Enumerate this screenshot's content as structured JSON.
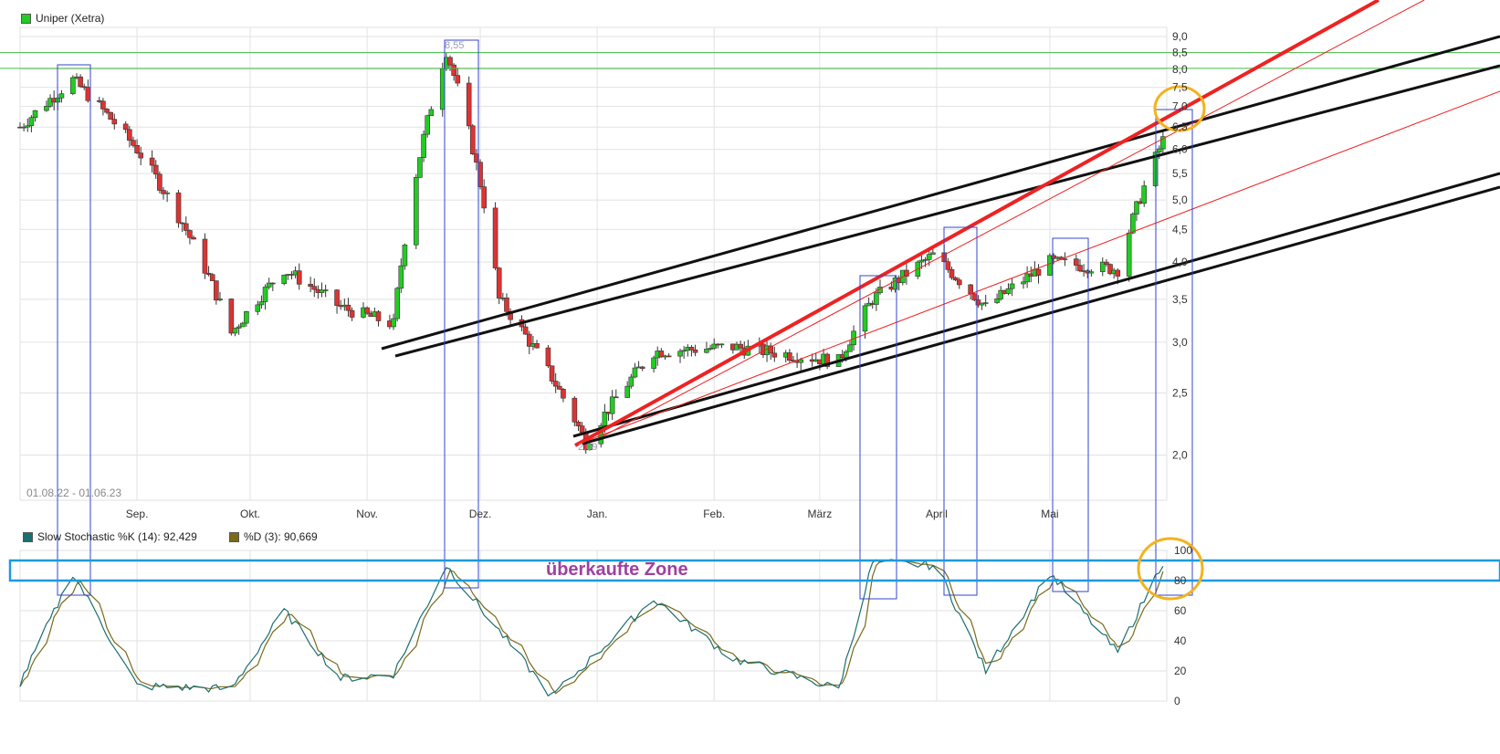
{
  "legend": {
    "price_series": "Uniper (Xetra)",
    "price_color": "#22cc22",
    "date_range": "01.08.22 - 01.06.23",
    "stoch_k_label": "Slow Stochastic %K (14): 92,429",
    "stoch_k_color": "#1b6e6e",
    "stoch_d_label": "%D (3): 90,669",
    "stoch_d_color": "#7a6a1a"
  },
  "annotations": {
    "zone_label": "überkaufte Zone",
    "peak_label": "8,55",
    "low_label": "2,09"
  },
  "colors": {
    "up": "#22cc22",
    "down": "#dd3333",
    "grid": "#e2e2e2",
    "box": "#3344cc",
    "zone": "#1a9be0",
    "zone_text": "#a040a0",
    "circle": "#f3b21e",
    "trend_black": "#111111",
    "trend_red": "#ee2222",
    "hline_green": "#44bb44"
  },
  "chart_data": [
    {
      "type": "candlestick",
      "series": [
        {
          "name": "Uniper (Xetra)"
        }
      ],
      "scale": "log",
      "ylim": [
        1.7,
        9.3
      ],
      "y_ticks": [
        "9,0",
        "8,5",
        "8,0",
        "7,5",
        "7,0",
        "6,5",
        "6,0",
        "5,5",
        "5,0",
        "4,5",
        "4,0",
        "3,5",
        "3,0",
        "2,5",
        "2,0"
      ],
      "y_tick_values": [
        9.0,
        8.5,
        8.0,
        7.5,
        7.0,
        6.5,
        6.0,
        5.5,
        5.0,
        4.5,
        4.0,
        3.5,
        3.0,
        2.5,
        2.0
      ],
      "x_ticks": [
        "Sep.",
        "Okt.",
        "Nov.",
        "Dez.",
        "Jan.",
        "Feb.",
        "März",
        "April",
        "Mai"
      ],
      "x_tick_dates": [
        "2022-09-01",
        "2022-10-01",
        "2022-11-01",
        "2022-12-01",
        "2023-01-01",
        "2023-02-01",
        "2023-03-01",
        "2023-04-01",
        "2023-05-01"
      ],
      "xlim": [
        "2022-08-01",
        "2023-06-01"
      ],
      "close_key_points": [
        {
          "date": "2022-08-01",
          "value": 6.5
        },
        {
          "date": "2022-08-15",
          "value": 7.7
        },
        {
          "date": "2022-09-01",
          "value": 6.0
        },
        {
          "date": "2022-09-26",
          "value": 3.1
        },
        {
          "date": "2022-10-10",
          "value": 3.9
        },
        {
          "date": "2022-10-25",
          "value": 3.4
        },
        {
          "date": "2022-11-08",
          "value": 3.2
        },
        {
          "date": "2022-11-22",
          "value": 8.55
        },
        {
          "date": "2022-12-06",
          "value": 3.5
        },
        {
          "date": "2022-12-29",
          "value": 2.09
        },
        {
          "date": "2023-01-16",
          "value": 2.9
        },
        {
          "date": "2023-02-06",
          "value": 2.95
        },
        {
          "date": "2023-03-06",
          "value": 2.8
        },
        {
          "date": "2023-03-15",
          "value": 3.5
        },
        {
          "date": "2023-03-31",
          "value": 4.1
        },
        {
          "date": "2023-04-14",
          "value": 3.4
        },
        {
          "date": "2023-05-01",
          "value": 4.0
        },
        {
          "date": "2023-05-19",
          "value": 3.9
        },
        {
          "date": "2023-05-31",
          "value": 6.2
        }
      ]
    },
    {
      "type": "line",
      "series": [
        {
          "name": "Slow Stochastic %K (14)"
        },
        {
          "name": "%D (3)"
        }
      ],
      "ylim": [
        0,
        100
      ],
      "y_ticks": [
        "100",
        "80",
        "60",
        "40",
        "20",
        "0"
      ],
      "y_tick_values": [
        100,
        80,
        60,
        40,
        20,
        0
      ],
      "k_key_points": [
        {
          "date": "2022-08-01",
          "value": 12
        },
        {
          "date": "2022-08-15",
          "value": 85
        },
        {
          "date": "2022-09-01",
          "value": 10
        },
        {
          "date": "2022-09-26",
          "value": 8
        },
        {
          "date": "2022-10-10",
          "value": 60
        },
        {
          "date": "2022-10-25",
          "value": 15
        },
        {
          "date": "2022-11-08",
          "value": 18
        },
        {
          "date": "2022-11-22",
          "value": 90
        },
        {
          "date": "2022-12-20",
          "value": 3
        },
        {
          "date": "2023-01-16",
          "value": 68
        },
        {
          "date": "2023-02-06",
          "value": 28
        },
        {
          "date": "2023-03-06",
          "value": 8
        },
        {
          "date": "2023-03-15",
          "value": 92
        },
        {
          "date": "2023-04-01",
          "value": 90
        },
        {
          "date": "2023-04-14",
          "value": 20
        },
        {
          "date": "2023-05-01",
          "value": 85
        },
        {
          "date": "2023-05-19",
          "value": 32
        },
        {
          "date": "2023-05-31",
          "value": 92.429
        }
      ]
    }
  ]
}
